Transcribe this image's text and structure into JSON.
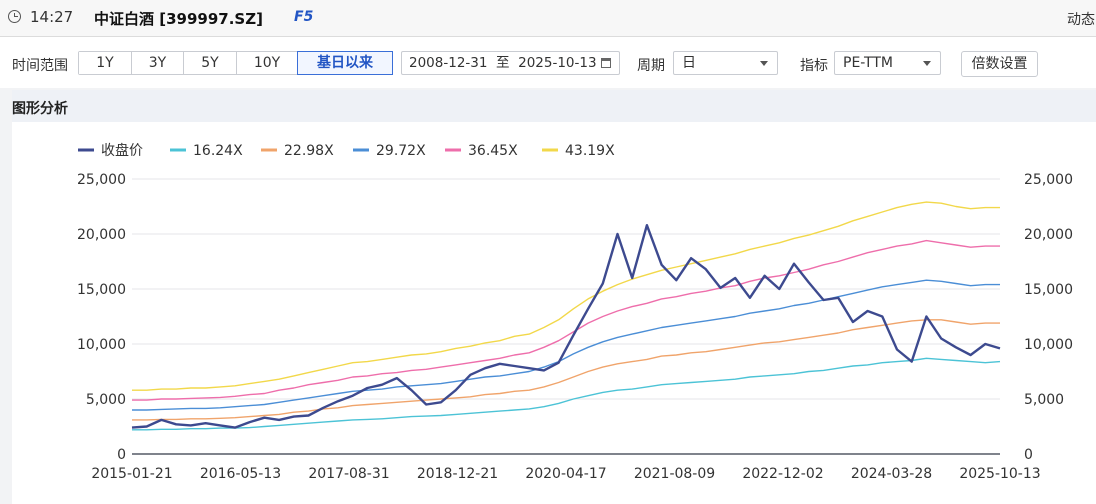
{
  "header": {
    "time": "14:27",
    "title": "中证白酒 [399997.SZ]",
    "hotkey": "F5",
    "right_label": "动态"
  },
  "toolbar": {
    "range_label": "时间范围",
    "ranges": [
      "1Y",
      "3Y",
      "5Y",
      "10Y",
      "基日以来"
    ],
    "active_range": "基日以来",
    "date_range": "2008-12-31  至  2025-10-13",
    "period_label": "周期",
    "period_value": "日",
    "metric_label": "指标",
    "metric_value": "PE-TTM",
    "multiplier_button": "倍数设置"
  },
  "panel": {
    "title": "图形分析"
  },
  "chart_data": {
    "type": "line",
    "x_tick_labels": [
      "2015-01-21",
      "2016-05-13",
      "2017-08-31",
      "2018-12-21",
      "2020-04-17",
      "2021-08-09",
      "2022-12-02",
      "2024-03-28",
      "2025-10-13"
    ],
    "y_tick_labels": [
      "0",
      "5,000",
      "10,000",
      "15,000",
      "20,000",
      "25,000"
    ],
    "ylim": [
      0,
      25000
    ],
    "grid": "horizontal",
    "legend_position": "top",
    "series": [
      {
        "name": "收盘价",
        "color": "#3d4a8f",
        "values": [
          2400,
          2500,
          3100,
          2700,
          2600,
          2800,
          2600,
          2400,
          2900,
          3300,
          3100,
          3400,
          3500,
          4200,
          4800,
          5300,
          6000,
          6300,
          6900,
          5800,
          4500,
          4700,
          5800,
          7200,
          7800,
          8200,
          8000,
          7800,
          7600,
          8300,
          10800,
          13200,
          15500,
          20000,
          16000,
          20800,
          17200,
          15800,
          17800,
          16800,
          15100,
          16000,
          14200,
          16200,
          15000,
          17300,
          15600,
          14000,
          14200,
          12000,
          13000,
          12500,
          9500,
          8400,
          12500,
          10500,
          9700,
          9000,
          10000,
          9600
        ]
      },
      {
        "name": "16.24X",
        "color": "#4cc3d6",
        "values": [
          2200,
          2200,
          2250,
          2250,
          2300,
          2300,
          2350,
          2350,
          2400,
          2500,
          2600,
          2700,
          2800,
          2900,
          3000,
          3100,
          3150,
          3200,
          3300,
          3400,
          3450,
          3500,
          3600,
          3700,
          3800,
          3900,
          4000,
          4100,
          4300,
          4600,
          5000,
          5300,
          5600,
          5800,
          5900,
          6100,
          6300,
          6400,
          6500,
          6600,
          6700,
          6800,
          7000,
          7100,
          7200,
          7300,
          7500,
          7600,
          7800,
          8000,
          8100,
          8300,
          8400,
          8500,
          8700,
          8600,
          8500,
          8400,
          8300,
          8400
        ]
      },
      {
        "name": "22.98X",
        "color": "#f0a46b",
        "values": [
          3100,
          3100,
          3150,
          3150,
          3200,
          3200,
          3250,
          3300,
          3400,
          3500,
          3600,
          3800,
          3900,
          4100,
          4200,
          4400,
          4500,
          4600,
          4700,
          4800,
          4900,
          5000,
          5100,
          5200,
          5400,
          5500,
          5700,
          5800,
          6100,
          6500,
          7000,
          7500,
          7900,
          8200,
          8400,
          8600,
          8900,
          9000,
          9200,
          9300,
          9500,
          9700,
          9900,
          10100,
          10200,
          10400,
          10600,
          10800,
          11000,
          11300,
          11500,
          11700,
          11900,
          12100,
          12200,
          12200,
          12000,
          11800,
          11900,
          11900
        ]
      },
      {
        "name": "29.72X",
        "color": "#4b8ed6",
        "values": [
          4000,
          4000,
          4050,
          4100,
          4150,
          4150,
          4200,
          4300,
          4400,
          4500,
          4700,
          4900,
          5100,
          5300,
          5500,
          5700,
          5800,
          5900,
          6100,
          6200,
          6300,
          6400,
          6600,
          6800,
          7000,
          7100,
          7300,
          7500,
          7900,
          8400,
          9100,
          9700,
          10200,
          10600,
          10900,
          11200,
          11500,
          11700,
          11900,
          12100,
          12300,
          12500,
          12800,
          13000,
          13200,
          13500,
          13700,
          14000,
          14300,
          14600,
          14900,
          15200,
          15400,
          15600,
          15800,
          15700,
          15500,
          15300,
          15400,
          15400
        ]
      },
      {
        "name": "36.45X",
        "color": "#ee6eab",
        "values": [
          4900,
          4900,
          5000,
          5000,
          5050,
          5100,
          5150,
          5250,
          5400,
          5500,
          5800,
          6000,
          6300,
          6500,
          6700,
          7000,
          7100,
          7300,
          7400,
          7600,
          7700,
          7900,
          8100,
          8300,
          8500,
          8700,
          9000,
          9200,
          9700,
          10300,
          11100,
          11900,
          12500,
          13000,
          13400,
          13700,
          14100,
          14300,
          14600,
          14800,
          15100,
          15300,
          15700,
          16000,
          16200,
          16500,
          16800,
          17200,
          17500,
          17900,
          18300,
          18600,
          18900,
          19100,
          19400,
          19200,
          19000,
          18800,
          18900,
          18900
        ]
      },
      {
        "name": "43.19X",
        "color": "#f2d84a",
        "values": [
          5800,
          5800,
          5900,
          5900,
          6000,
          6000,
          6100,
          6200,
          6400,
          6600,
          6800,
          7100,
          7400,
          7700,
          8000,
          8300,
          8400,
          8600,
          8800,
          9000,
          9100,
          9300,
          9600,
          9800,
          10100,
          10300,
          10700,
          10900,
          11500,
          12200,
          13200,
          14100,
          14800,
          15400,
          15900,
          16300,
          16700,
          17000,
          17300,
          17600,
          17900,
          18200,
          18600,
          18900,
          19200,
          19600,
          19900,
          20300,
          20700,
          21200,
          21600,
          22000,
          22400,
          22700,
          22900,
          22800,
          22500,
          22300,
          22400,
          22400
        ]
      }
    ]
  }
}
